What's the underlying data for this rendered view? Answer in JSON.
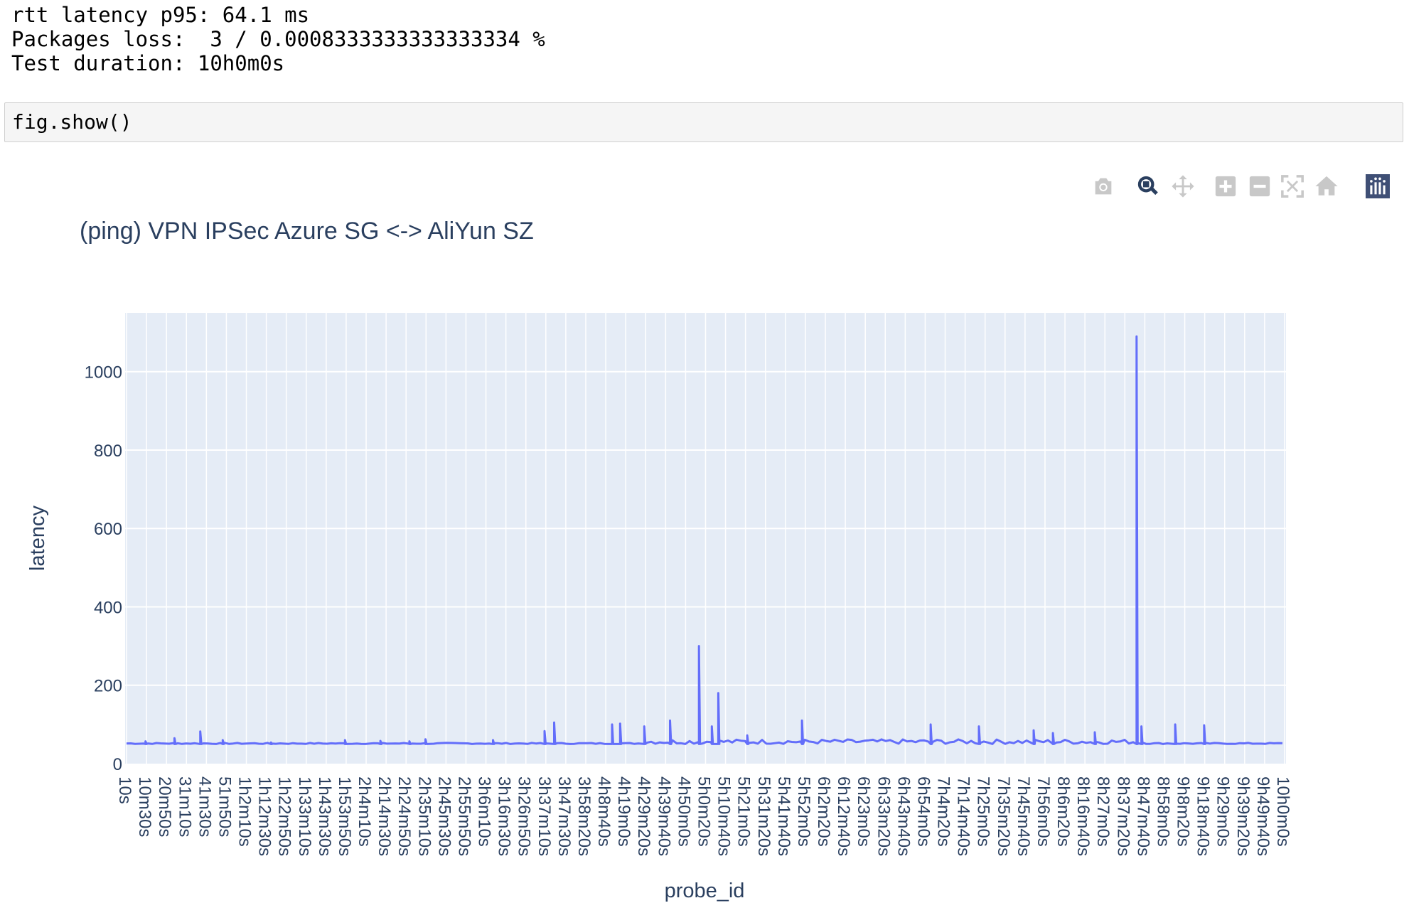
{
  "output_lines": [
    "rtt latency p95: 64.1 ms",
    "Packages loss:  3 / 0.0008333333333333334 %",
    "Test duration: 10h0m0s"
  ],
  "code_cell": {
    "code": "fig.show()"
  },
  "modebar": {
    "buttons": [
      {
        "icon": "camera-icon",
        "title": "Download plot as a png"
      },
      {
        "icon": "zoom-icon",
        "title": "Zoom"
      },
      {
        "icon": "pan-icon",
        "title": "Pan"
      },
      {
        "icon": "zoom-in-icon",
        "title": "Zoom in"
      },
      {
        "icon": "zoom-out-icon",
        "title": "Zoom out"
      },
      {
        "icon": "autoscale-icon",
        "title": "Autoscale"
      },
      {
        "icon": "home-icon",
        "title": "Reset axes"
      },
      {
        "icon": "plotly-logo-icon",
        "title": "Produced with Plotly"
      }
    ]
  },
  "colors": {
    "plot_bg": "#e5ecf6",
    "line": "#636efa",
    "text": "#2a3f5f",
    "grid": "#ffffff",
    "modebar_icon": "#c8c8c8",
    "logo": "#3f4f75"
  },
  "chart_data": {
    "type": "line",
    "title": "(ping) VPN IPSec Azure SG <-> AliYun SZ",
    "xlabel": "probe_id",
    "ylabel": "latency",
    "ylim": [
      0,
      1150
    ],
    "yticks": [
      0,
      200,
      400,
      600,
      800,
      1000
    ],
    "grid": true,
    "x_tick_labels": [
      "10s",
      "10m30s",
      "20m50s",
      "31m10s",
      "41m30s",
      "51m50s",
      "1h2m10s",
      "1h12m30s",
      "1h22m50s",
      "1h33m10s",
      "1h43m30s",
      "1h53m50s",
      "2h4m10s",
      "2h14m30s",
      "2h24m50s",
      "2h35m10s",
      "2h45m30s",
      "2h55m50s",
      "3h6m10s",
      "3h16m30s",
      "3h26m50s",
      "3h37m10s",
      "3h47m30s",
      "3h58m20s",
      "4h8m40s",
      "4h19m0s",
      "4h29m20s",
      "4h39m40s",
      "4h50m0s",
      "5h0m20s",
      "5h10m40s",
      "5h21m0s",
      "5h31m20s",
      "5h41m40s",
      "5h52m0s",
      "6h2m20s",
      "6h12m40s",
      "6h23m0s",
      "6h33m20s",
      "6h43m40s",
      "6h54m0s",
      "7h4m20s",
      "7h14m40s",
      "7h25m0s",
      "7h35m20s",
      "7h45m40s",
      "7h56m0s",
      "8h6m20s",
      "8h16m40s",
      "8h27m0s",
      "8h37m20s",
      "8h47m40s",
      "8h58m0s",
      "9h8m20s",
      "9h18m40s",
      "9h29m0s",
      "9h39m20s",
      "9h49m40s",
      "10h0m0s"
    ],
    "series": [
      {
        "x_range_seconds": [
          10,
          36000
        ],
        "baseline": 50,
        "spikes": [
          {
            "x": 600,
            "y": 57
          },
          {
            "x": 1500,
            "y": 65
          },
          {
            "x": 2300,
            "y": 82
          },
          {
            "x": 3000,
            "y": 60
          },
          {
            "x": 4500,
            "y": 54
          },
          {
            "x": 6800,
            "y": 60
          },
          {
            "x": 7900,
            "y": 58
          },
          {
            "x": 8800,
            "y": 57
          },
          {
            "x": 9300,
            "y": 62
          },
          {
            "x": 11400,
            "y": 60
          },
          {
            "x": 13000,
            "y": 83
          },
          {
            "x": 13300,
            "y": 105
          },
          {
            "x": 15100,
            "y": 100
          },
          {
            "x": 15350,
            "y": 102
          },
          {
            "x": 16100,
            "y": 95
          },
          {
            "x": 16900,
            "y": 110
          },
          {
            "x": 17800,
            "y": 300
          },
          {
            "x": 18200,
            "y": 95
          },
          {
            "x": 18400,
            "y": 180
          },
          {
            "x": 19300,
            "y": 72
          },
          {
            "x": 21000,
            "y": 110
          },
          {
            "x": 25000,
            "y": 100
          },
          {
            "x": 26500,
            "y": 95
          },
          {
            "x": 28200,
            "y": 85
          },
          {
            "x": 28800,
            "y": 78
          },
          {
            "x": 30100,
            "y": 80
          },
          {
            "x": 31400,
            "y": 1090
          },
          {
            "x": 31550,
            "y": 95
          },
          {
            "x": 32600,
            "y": 100
          },
          {
            "x": 33500,
            "y": 98
          }
        ]
      }
    ]
  }
}
